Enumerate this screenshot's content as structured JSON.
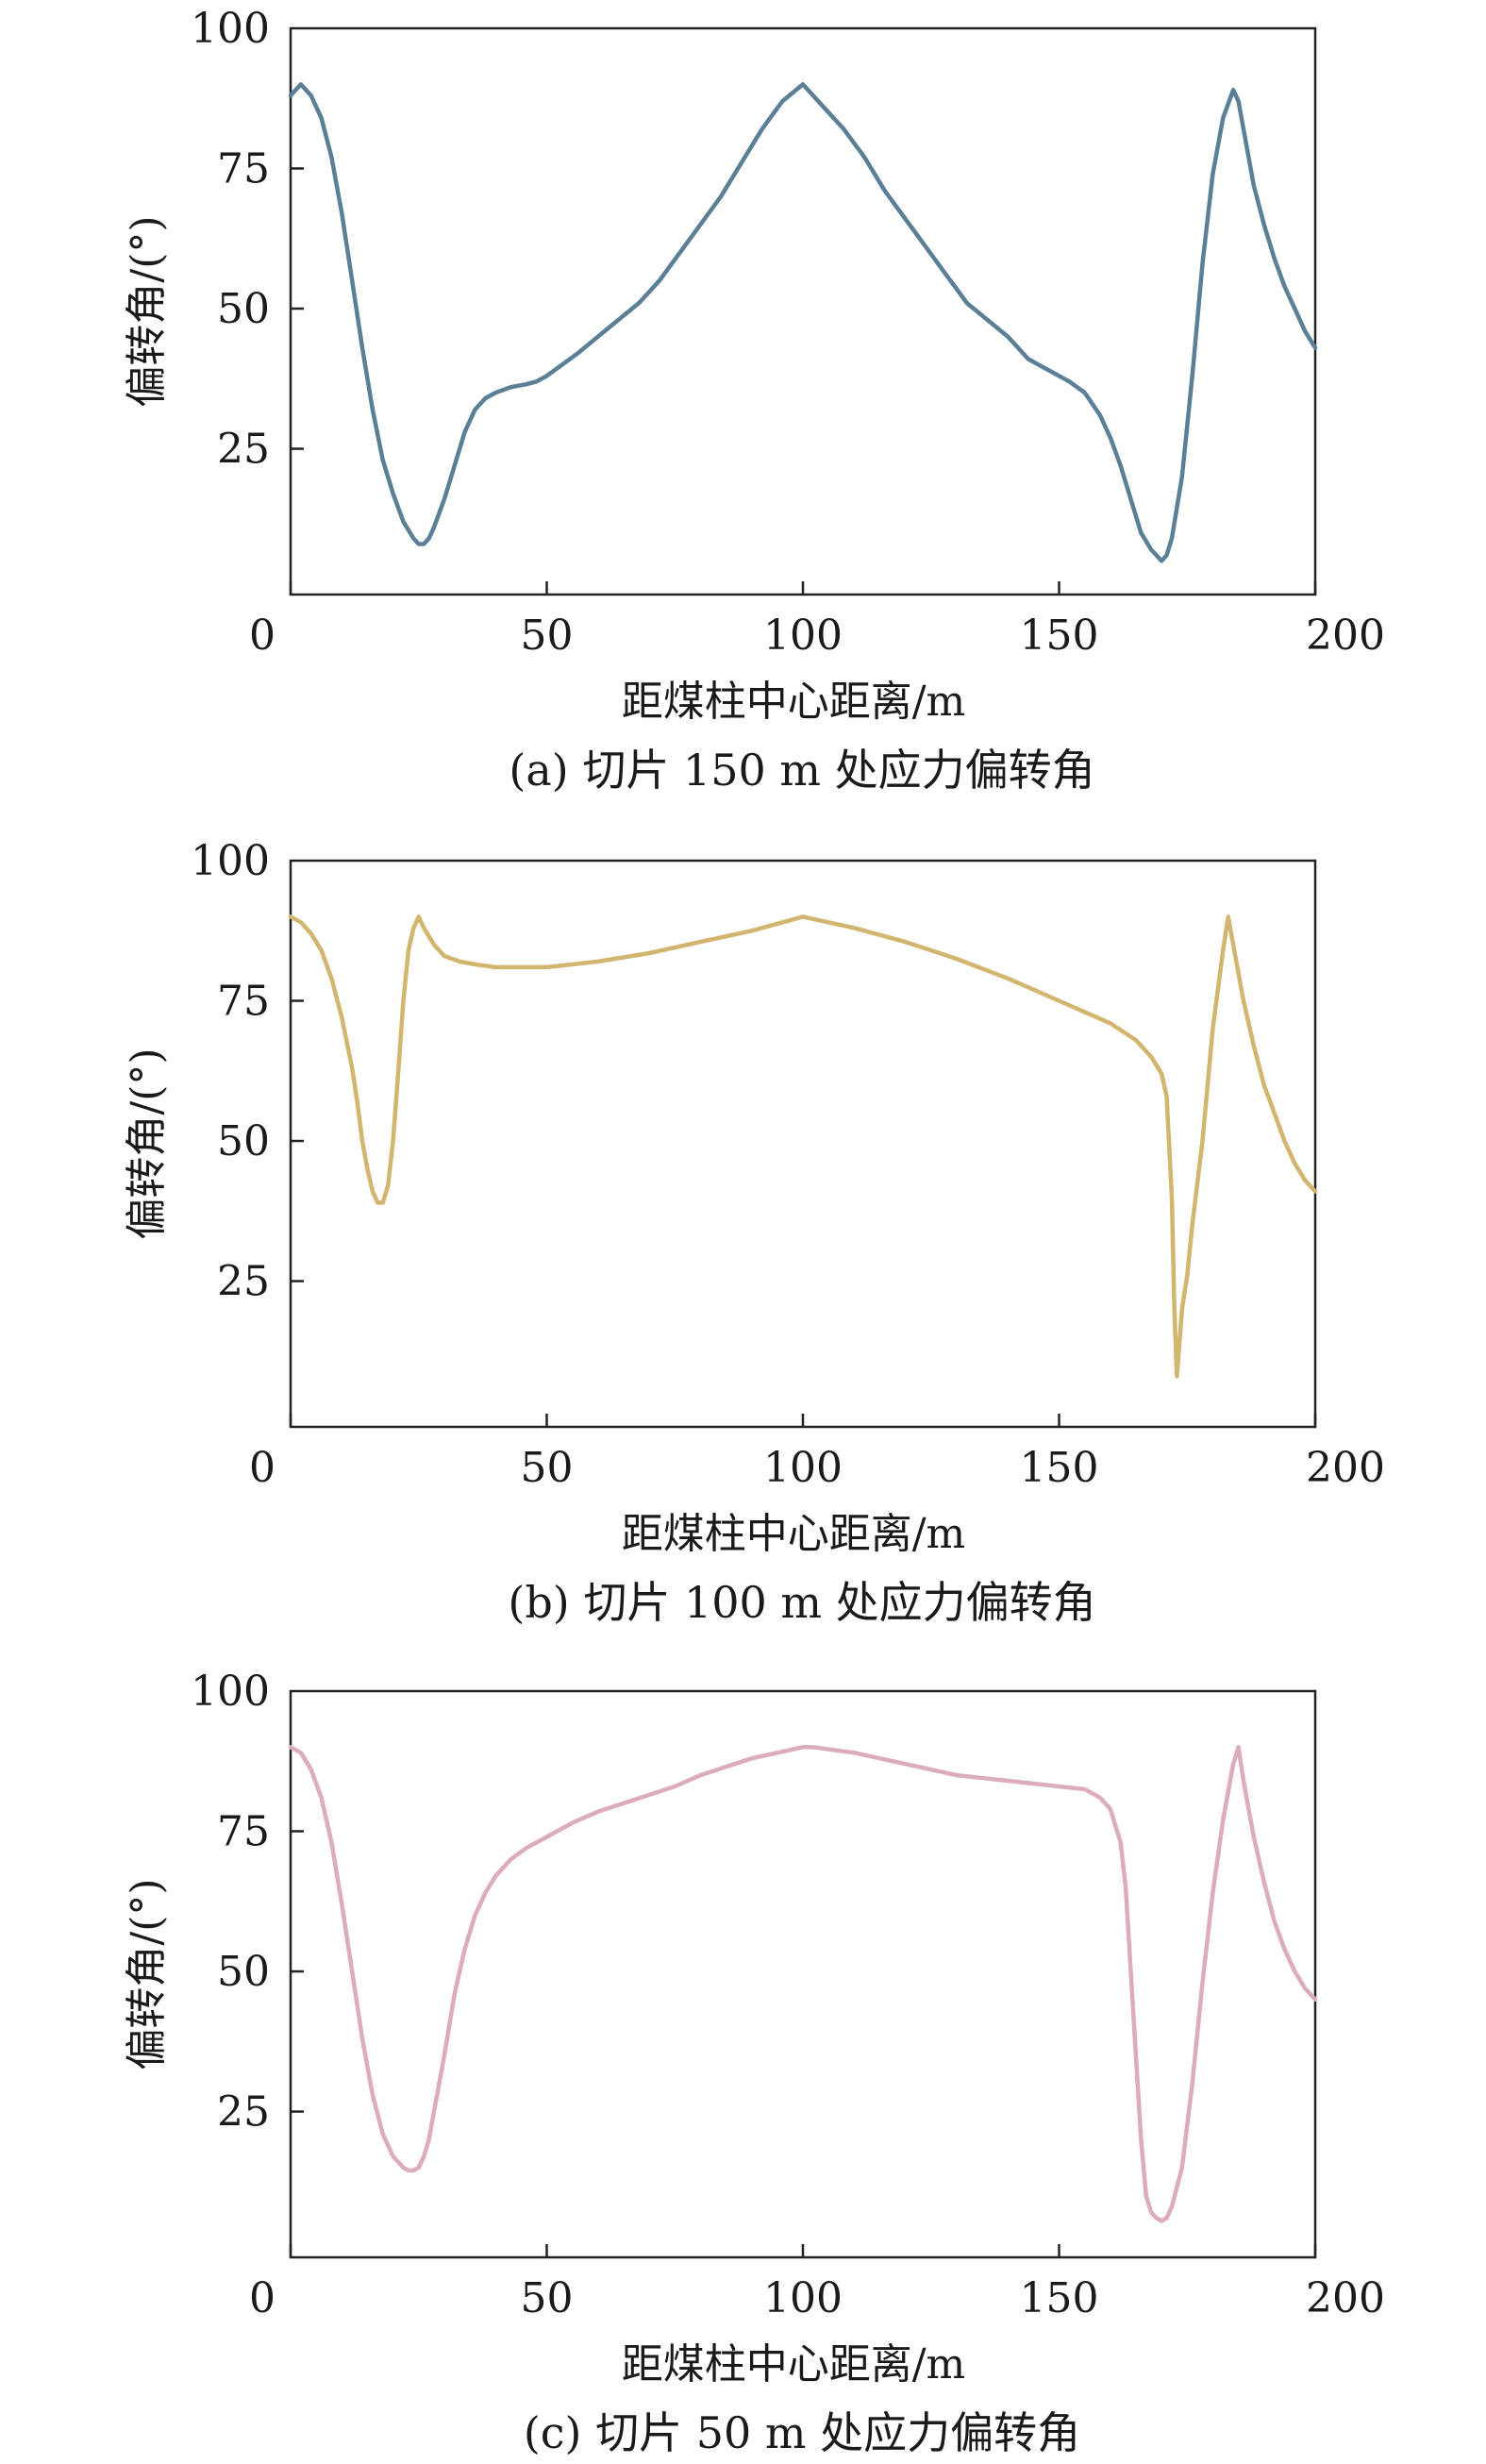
{
  "chart_data": [
    {
      "type": "line",
      "caption": "(a) 切片 150 m 处应力偏转角",
      "xlabel": "距煤柱中心距离/m",
      "ylabel": "偏转角/(°)",
      "xlim": [
        0,
        200
      ],
      "ylim": [
        -1,
        100
      ],
      "xticks": [
        0,
        50,
        100,
        150,
        200
      ],
      "yticks": [
        25,
        50,
        75,
        100
      ],
      "color": "#5a7f96",
      "series": [
        {
          "x": [
            0,
            1,
            2,
            4,
            6,
            8,
            10,
            12,
            14,
            16,
            18,
            20,
            22,
            24,
            25,
            26,
            27,
            28,
            30,
            32,
            34,
            36,
            38,
            40,
            43,
            46,
            48,
            50,
            53,
            56,
            60,
            64,
            68,
            72,
            76,
            80,
            84,
            88,
            92,
            96,
            100,
            104,
            108,
            112,
            116,
            120,
            124,
            128,
            132,
            136,
            140,
            144,
            148,
            152,
            155,
            158,
            160,
            162,
            164,
            166,
            168,
            169,
            170,
            171,
            172,
            174,
            176,
            178,
            180,
            182,
            184,
            185,
            186,
            188,
            190,
            192,
            194,
            196,
            198,
            200
          ],
          "y": [
            88,
            89,
            90,
            88,
            84,
            77,
            67,
            55,
            43,
            32,
            23,
            17,
            12,
            9,
            8,
            8,
            9,
            11,
            16,
            22,
            28,
            32,
            34,
            35,
            36,
            36.5,
            37,
            38,
            40,
            42,
            45,
            48,
            51,
            55,
            60,
            65,
            70,
            76,
            82,
            87,
            90,
            86,
            82,
            77,
            71,
            66,
            61,
            56,
            51,
            48,
            45,
            41,
            39,
            37,
            35,
            31,
            27,
            22,
            16,
            10,
            7,
            6,
            5,
            6,
            9,
            20,
            38,
            58,
            74,
            84,
            89,
            87,
            82,
            72,
            65,
            59,
            54,
            50,
            46,
            43
          ]
        }
      ]
    },
    {
      "type": "line",
      "caption": "(b) 切片 100 m 处应力偏转角",
      "xlabel": "距煤柱中心距离/m",
      "ylabel": "偏转角/(°)",
      "xlim": [
        0,
        200
      ],
      "ylim": [
        -1,
        100
      ],
      "xticks": [
        0,
        50,
        100,
        150,
        200
      ],
      "yticks": [
        25,
        50,
        75,
        100
      ],
      "color": "#d2b56e",
      "series": [
        {
          "x": [
            0,
            2,
            4,
            6,
            8,
            10,
            12,
            13,
            14,
            15,
            16,
            17,
            18,
            19,
            20,
            21,
            22,
            23,
            24,
            25,
            26,
            28,
            30,
            33,
            36,
            40,
            45,
            50,
            55,
            60,
            70,
            80,
            90,
            100,
            110,
            120,
            130,
            140,
            150,
            160,
            165,
            168,
            170,
            171,
            172,
            172.5,
            173,
            173.5,
            174,
            175,
            176,
            178,
            180,
            182,
            183,
            184,
            186,
            188,
            190,
            192,
            194,
            196,
            198,
            200
          ],
          "y": [
            90,
            89,
            87,
            84,
            79,
            72,
            63,
            57,
            50,
            45,
            41,
            39,
            39,
            42,
            50,
            62,
            75,
            84,
            88,
            90,
            88,
            85,
            83,
            82,
            81.5,
            81,
            81,
            81,
            81.5,
            82,
            83.5,
            85.5,
            87.5,
            90,
            88,
            85.5,
            82.5,
            79,
            75,
            71,
            68,
            65,
            62,
            58,
            40,
            20,
            8,
            14,
            20,
            26,
            35,
            50,
            70,
            84,
            90,
            85,
            75,
            67,
            60,
            55,
            50,
            46,
            43,
            41
          ]
        }
      ]
    },
    {
      "type": "line",
      "caption": "(c) 切片 50 m 处应力偏转角",
      "xlabel": "距煤柱中心距离/m",
      "ylabel": "偏转角/(°)",
      "xlim": [
        0,
        200
      ],
      "ylim": [
        -1,
        100
      ],
      "xticks": [
        0,
        50,
        100,
        150,
        200
      ],
      "yticks": [
        25,
        50,
        75,
        100
      ],
      "color": "#dcacba",
      "series": [
        {
          "x": [
            0,
            2,
            4,
            6,
            8,
            10,
            12,
            14,
            16,
            18,
            20,
            22,
            23,
            24,
            25,
            26,
            27,
            28,
            30,
            32,
            34,
            36,
            38,
            40,
            43,
            46,
            50,
            55,
            60,
            65,
            70,
            75,
            80,
            85,
            90,
            95,
            100,
            102,
            110,
            120,
            130,
            140,
            150,
            155,
            158,
            160,
            162,
            163,
            164,
            165,
            166,
            167,
            168,
            169,
            170,
            171,
            172,
            174,
            176,
            178,
            180,
            182,
            184,
            185,
            186,
            188,
            190,
            192,
            194,
            196,
            198,
            200
          ],
          "y": [
            90,
            89,
            86,
            81,
            73,
            62,
            50,
            38,
            28,
            21,
            17,
            15,
            14.5,
            14.5,
            15,
            17,
            20,
            25,
            35,
            46,
            54,
            60,
            64,
            67,
            70,
            72,
            74,
            76.5,
            78.5,
            80,
            81.5,
            83,
            85,
            86.5,
            88,
            89,
            90,
            90,
            89,
            87,
            85,
            84,
            83,
            82.5,
            81,
            79,
            73,
            65,
            50,
            35,
            20,
            10,
            7,
            6,
            5.5,
            6,
            8,
            15,
            30,
            48,
            64,
            77,
            87,
            90,
            84,
            74,
            66,
            59,
            54,
            50,
            47,
            45
          ]
        }
      ]
    }
  ]
}
